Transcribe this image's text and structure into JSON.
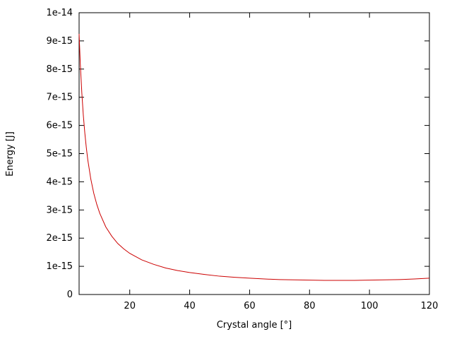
{
  "chart_data": {
    "type": "line",
    "title": "",
    "xlabel": "Crystal angle [°]",
    "ylabel": "Energy [J]",
    "xlim": [
      3.1,
      120
    ],
    "ylim": [
      0,
      1e-14
    ],
    "grid": false,
    "legend": "none",
    "axis_color": "#000000",
    "x_ticks": [
      {
        "value": 20,
        "label": "20"
      },
      {
        "value": 40,
        "label": "40"
      },
      {
        "value": 60,
        "label": "60"
      },
      {
        "value": 80,
        "label": "80"
      },
      {
        "value": 100,
        "label": "100"
      },
      {
        "value": 120,
        "label": "120"
      }
    ],
    "y_ticks": [
      {
        "value": 0,
        "label": "0"
      },
      {
        "value": 1e-15,
        "label": "1e-15"
      },
      {
        "value": 2e-15,
        "label": "2e-15"
      },
      {
        "value": 3e-15,
        "label": "3e-15"
      },
      {
        "value": 4e-15,
        "label": "4e-15"
      },
      {
        "value": 5e-15,
        "label": "5e-15"
      },
      {
        "value": 6e-15,
        "label": "6e-15"
      },
      {
        "value": 7e-15,
        "label": "7e-15"
      },
      {
        "value": 8e-15,
        "label": "8e-15"
      },
      {
        "value": 9e-15,
        "label": "9e-15"
      },
      {
        "value": 1e-14,
        "label": "1e-14"
      }
    ],
    "series": [
      {
        "name": "energy-vs-crystal-angle",
        "color": "#cc0000",
        "x": [
          3.1,
          3.5,
          4,
          4.5,
          5,
          5.5,
          6,
          7,
          8,
          9,
          10,
          12,
          14,
          16,
          18,
          20,
          24,
          28,
          32,
          36,
          40,
          45,
          50,
          55,
          60,
          65,
          70,
          75,
          80,
          85,
          90,
          95,
          100,
          105,
          110,
          115,
          120
        ],
        "y": [
          9.25e-15,
          8.19e-15,
          7.17e-15,
          6.37e-15,
          5.74e-15,
          5.22e-15,
          4.78e-15,
          4.1e-15,
          3.59e-15,
          3.2e-15,
          2.88e-15,
          2.4e-15,
          2.07e-15,
          1.81e-15,
          1.62e-15,
          1.46e-15,
          1.23e-15,
          1.07e-15,
          9.4e-16,
          8.5e-16,
          7.8e-16,
          7.1e-16,
          6.5e-16,
          6.1e-16,
          5.8e-16,
          5.5e-16,
          5.3e-16,
          5.2e-16,
          5.1e-16,
          5e-16,
          5e-16,
          5e-16,
          5.1e-16,
          5.2e-16,
          5.3e-16,
          5.5e-16,
          5.8e-16
        ]
      }
    ]
  }
}
